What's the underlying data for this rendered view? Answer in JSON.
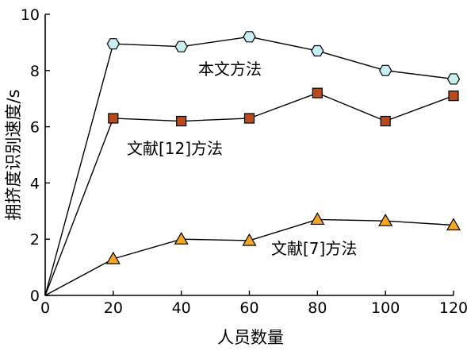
{
  "chart_data": {
    "type": "line",
    "xlabel": "人员数量",
    "ylabel": "拥挤度识别速度/s",
    "xlim": [
      0,
      120
    ],
    "ylim": [
      0,
      10
    ],
    "x_ticks": [
      "0",
      "20",
      "40",
      "60",
      "80",
      "100",
      "120"
    ],
    "y_ticks": [
      "0",
      "2",
      "4",
      "6",
      "8",
      "10"
    ],
    "grid": false,
    "series": [
      {
        "name": "本文方法",
        "marker": "hexagon",
        "color": "#c8eef2",
        "x": [
          0,
          20,
          40,
          60,
          80,
          100,
          120
        ],
        "y": [
          0,
          8.95,
          8.85,
          9.2,
          8.7,
          8.0,
          7.7
        ]
      },
      {
        "name": "文献[12]方法",
        "marker": "square",
        "color": "#b84a1c",
        "x": [
          0,
          20,
          40,
          60,
          80,
          100,
          120
        ],
        "y": [
          0,
          6.3,
          6.2,
          6.3,
          7.2,
          6.2,
          7.1
        ]
      },
      {
        "name": "文献[7]方法",
        "marker": "triangle",
        "color": "#f5a623",
        "x": [
          0,
          20,
          40,
          60,
          80,
          100,
          120
        ],
        "y": [
          0,
          1.3,
          2.0,
          1.95,
          2.7,
          2.65,
          2.5
        ]
      }
    ]
  }
}
